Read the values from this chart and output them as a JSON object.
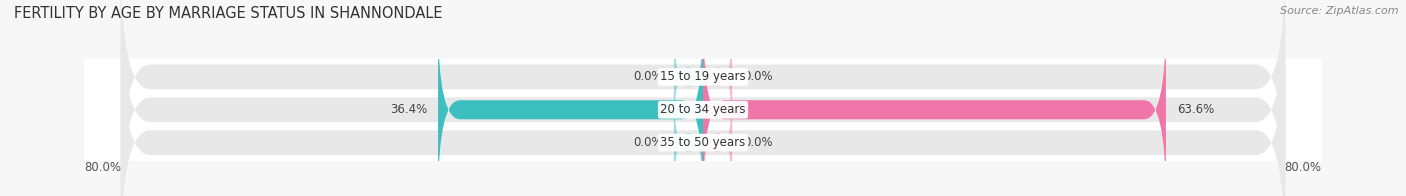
{
  "title": "FERTILITY BY AGE BY MARRIAGE STATUS IN SHANNONDALE",
  "source": "Source: ZipAtlas.com",
  "categories": [
    "15 to 19 years",
    "20 to 34 years",
    "35 to 50 years"
  ],
  "married": [
    0.0,
    36.4,
    0.0
  ],
  "unmarried": [
    0.0,
    63.6,
    0.0
  ],
  "xlim_left": -80,
  "xlim_right": 80,
  "xtick_left_label": "80.0%",
  "xtick_right_label": "80.0%",
  "married_color": "#3dbfbf",
  "unmarried_color": "#f075a8",
  "bg_bar_color": "#e8e8e8",
  "bar_height": 0.58,
  "bg_bar_height": 0.75,
  "title_fontsize": 10.5,
  "source_fontsize": 8,
  "label_fontsize": 8.5,
  "category_fontsize": 8.5,
  "tick_fontsize": 8.5,
  "background_color": "#f7f7f7",
  "plot_bg_color": "#ffffff",
  "small_married_bar_width": 4,
  "small_unmarried_bar_width": 4
}
